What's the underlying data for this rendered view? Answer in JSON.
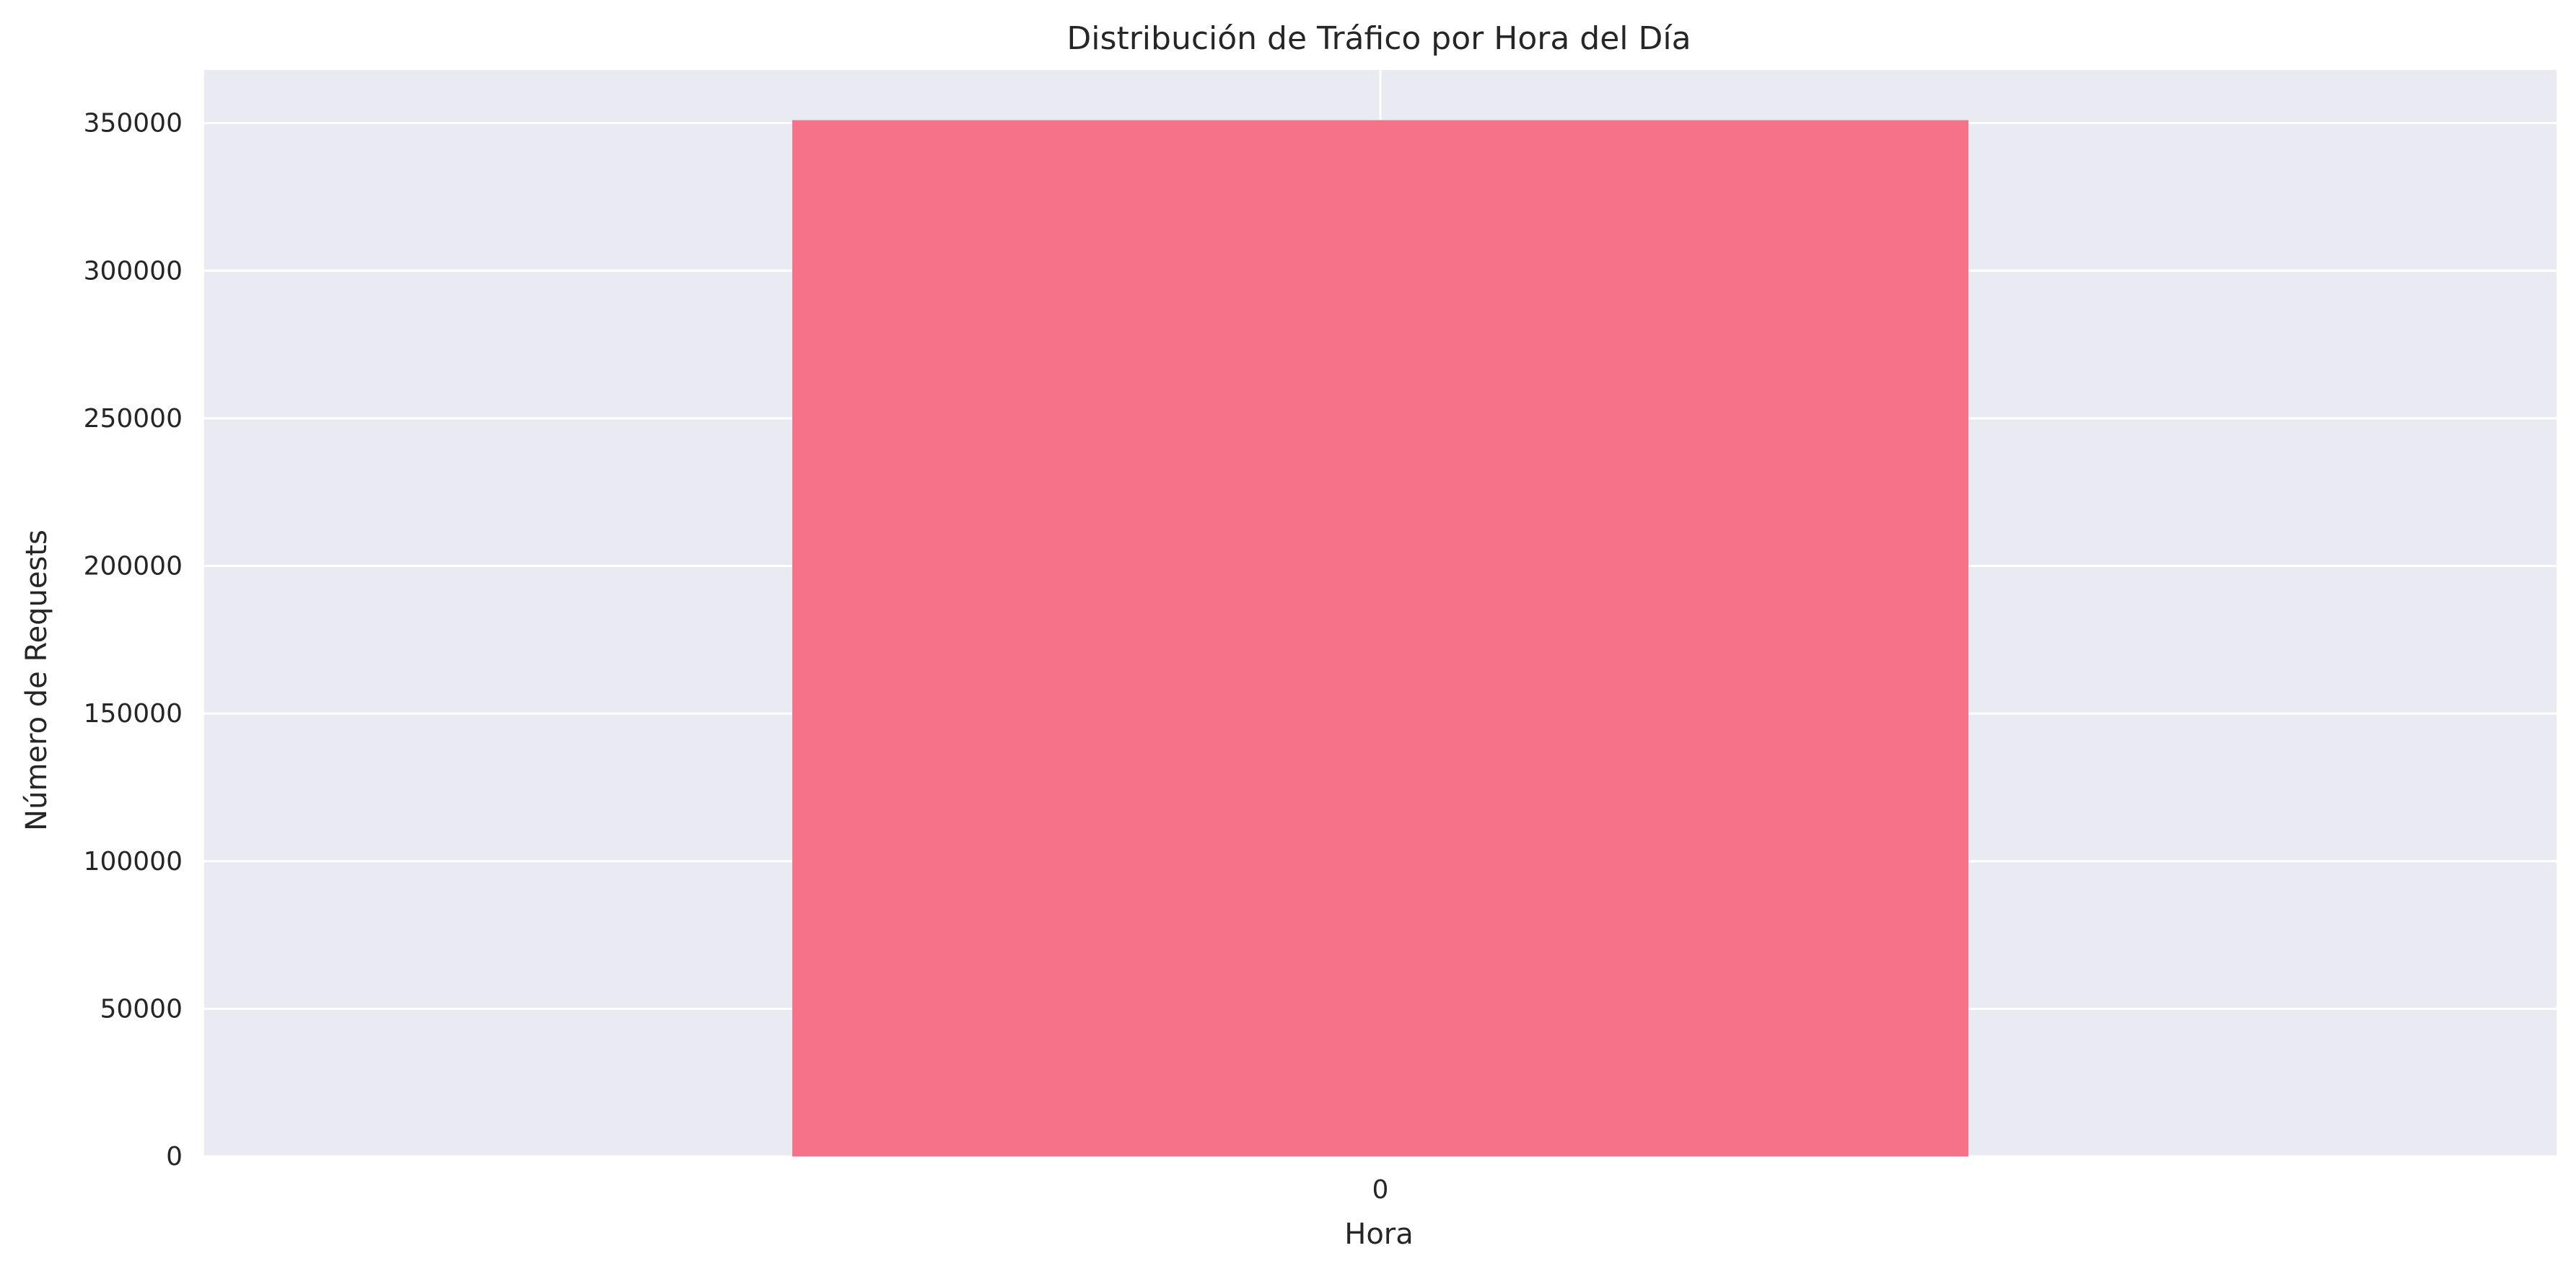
{
  "chart_data": {
    "type": "bar",
    "title": "Distribución de Tráfico por Hora del Día",
    "xlabel": "Hora",
    "ylabel": "Número de Requests",
    "categories": [
      "0"
    ],
    "values": [
      351000
    ],
    "ylim": [
      0,
      368000
    ],
    "yticks": [
      0,
      50000,
      100000,
      150000,
      200000,
      250000,
      300000,
      350000
    ],
    "grid": true,
    "legend": "none"
  },
  "colors": {
    "plot_background": "#eaeaf2",
    "grid": "#ffffff",
    "bar": "#f67288",
    "text": "#262626"
  }
}
